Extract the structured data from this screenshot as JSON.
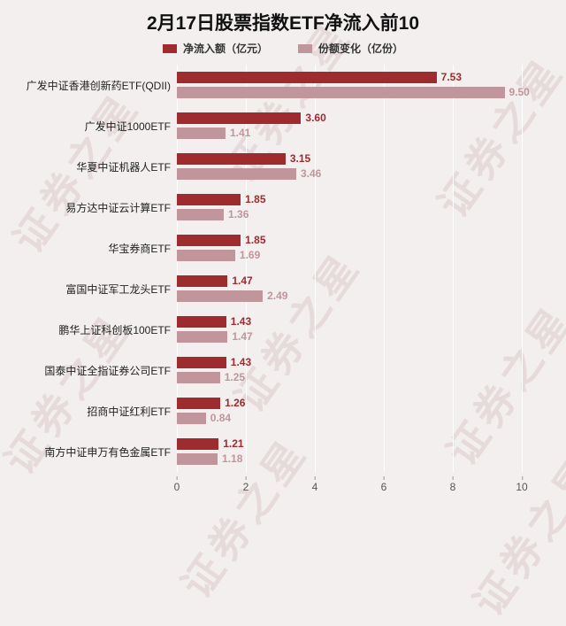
{
  "title": "2月17日股票指数ETF净流入前10",
  "watermark": "证券之星",
  "colors": {
    "net_inflow": "#9e2b2e",
    "share_change": "#c0959c",
    "background": "#f2efee"
  },
  "legend": [
    {
      "label": "净流入额（亿元）",
      "color": "#9e2b2e"
    },
    {
      "label": "份额变化（亿份）",
      "color": "#c0959c"
    }
  ],
  "chart_data": {
    "type": "bar",
    "orientation": "horizontal",
    "title": "2月17日股票指数ETF净流入前10",
    "xlabel": "",
    "ylabel": "",
    "xlim": [
      0,
      10
    ],
    "xticks": [
      0,
      2,
      4,
      6,
      8,
      10
    ],
    "grid": true,
    "legend_position": "top",
    "categories": [
      "广发中证香港创新药ETF(QDII)",
      "广发中证1000ETF",
      "华夏中证机器人ETF",
      "易方达中证云计算ETF",
      "华宝券商ETF",
      "富国中证军工龙头ETF",
      "鹏华上证科创板100ETF",
      "国泰中证全指证券公司ETF",
      "招商中证红利ETF",
      "南方中证申万有色金属ETF"
    ],
    "series": [
      {
        "name": "净流入额（亿元）",
        "color": "#9e2b2e",
        "values": [
          7.53,
          3.6,
          3.15,
          1.85,
          1.85,
          1.47,
          1.43,
          1.43,
          1.26,
          1.21
        ]
      },
      {
        "name": "份额变化（亿份）",
        "color": "#c0959c",
        "values": [
          9.5,
          1.41,
          3.46,
          1.36,
          1.69,
          2.49,
          1.47,
          1.25,
          0.84,
          1.18
        ]
      }
    ]
  }
}
